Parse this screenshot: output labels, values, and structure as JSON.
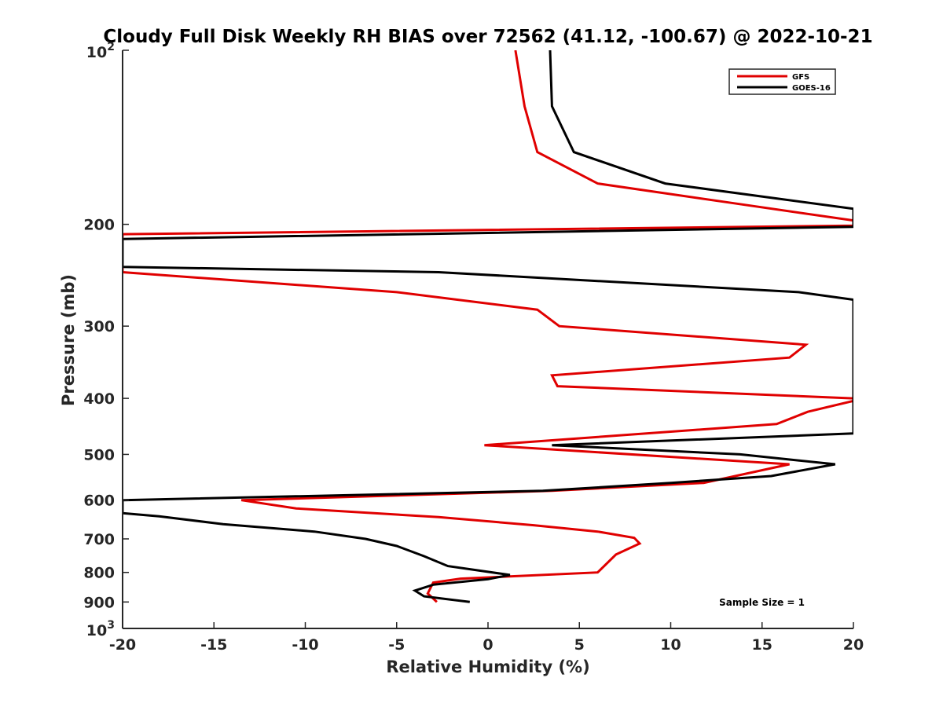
{
  "chart_data": {
    "type": "line",
    "title": "Cloudy Full Disk Weekly RH BIAS over 72562 (41.12, -100.67) @ 2022-10-21",
    "xlabel": "Relative Humidity (%)",
    "ylabel": "Pressure (mb)",
    "xlim": [
      -20,
      20
    ],
    "ylim": [
      100,
      1000
    ],
    "y_scale": "log",
    "y_reversed": true,
    "grid": false,
    "legend_position": "top-right",
    "x_ticks": [
      "-20",
      "-15",
      "-10",
      "-5",
      "0",
      "5",
      "10",
      "15",
      "20"
    ],
    "y_ticks": [
      {
        "value": 100,
        "base": "10",
        "exp": "2"
      },
      {
        "value": 200,
        "label": "200"
      },
      {
        "value": 300,
        "label": "300"
      },
      {
        "value": 400,
        "label": "400"
      },
      {
        "value": 500,
        "label": "500"
      },
      {
        "value": 600,
        "label": "600"
      },
      {
        "value": 700,
        "label": "700"
      },
      {
        "value": 800,
        "label": "800"
      },
      {
        "value": 900,
        "label": "900"
      },
      {
        "value": 1000,
        "base": "10",
        "exp": "3"
      }
    ],
    "annotation": "Sample Size = 1",
    "series": [
      {
        "name": "GFS",
        "color": "#e00000",
        "points": [
          [
            1.5,
            100
          ],
          [
            2.0,
            125
          ],
          [
            2.7,
            150
          ],
          [
            6.0,
            170
          ],
          [
            13.0,
            183
          ],
          [
            20,
            197
          ],
          [
            20,
            201
          ],
          [
            -20,
            208
          ],
          [
            -20,
            242
          ],
          [
            -5.0,
            262
          ],
          [
            2.7,
            281
          ],
          [
            3.9,
            300
          ],
          [
            17.4,
            323
          ],
          [
            16.5,
            340
          ],
          [
            3.5,
            365
          ],
          [
            3.8,
            381
          ],
          [
            20,
            400
          ],
          [
            20,
            404
          ],
          [
            17.5,
            422
          ],
          [
            15.8,
            443
          ],
          [
            -0.2,
            482
          ],
          [
            16.5,
            520
          ],
          [
            11.8,
            560
          ],
          [
            3.5,
            578
          ],
          [
            -13.5,
            600
          ],
          [
            -10.5,
            620
          ],
          [
            -2.7,
            642
          ],
          [
            2.5,
            663
          ],
          [
            6.0,
            680
          ],
          [
            8.0,
            697
          ],
          [
            8.3,
            713
          ],
          [
            7.0,
            745
          ],
          [
            6.0,
            800
          ],
          [
            -1.5,
            820
          ],
          [
            -3.0,
            833
          ],
          [
            -3.3,
            870
          ],
          [
            -2.8,
            900
          ]
        ]
      },
      {
        "name": "GOES-16",
        "color": "#000000",
        "points": [
          [
            3.4,
            100
          ],
          [
            3.5,
            125
          ],
          [
            4.7,
            150
          ],
          [
            9.7,
            170
          ],
          [
            20,
            188
          ],
          [
            20,
            202
          ],
          [
            -20,
            212
          ],
          [
            -20,
            237
          ],
          [
            -2.7,
            242
          ],
          [
            17.0,
            262
          ],
          [
            20,
            270
          ],
          [
            20,
            460
          ],
          [
            3.5,
            482
          ],
          [
            13.8,
            500
          ],
          [
            19.0,
            520
          ],
          [
            15.5,
            545
          ],
          [
            10.0,
            560
          ],
          [
            3.0,
            578
          ],
          [
            -20,
            600
          ],
          [
            -20,
            632
          ],
          [
            -18.0,
            640
          ],
          [
            -14.5,
            660
          ],
          [
            -9.5,
            680
          ],
          [
            -6.7,
            700
          ],
          [
            -5.0,
            720
          ],
          [
            -3.5,
            750
          ],
          [
            -2.2,
            780
          ],
          [
            1.2,
            808
          ],
          [
            0.0,
            822
          ],
          [
            -3.0,
            840
          ],
          [
            -4.0,
            860
          ],
          [
            -3.5,
            880
          ],
          [
            -1.0,
            900
          ]
        ]
      }
    ]
  }
}
